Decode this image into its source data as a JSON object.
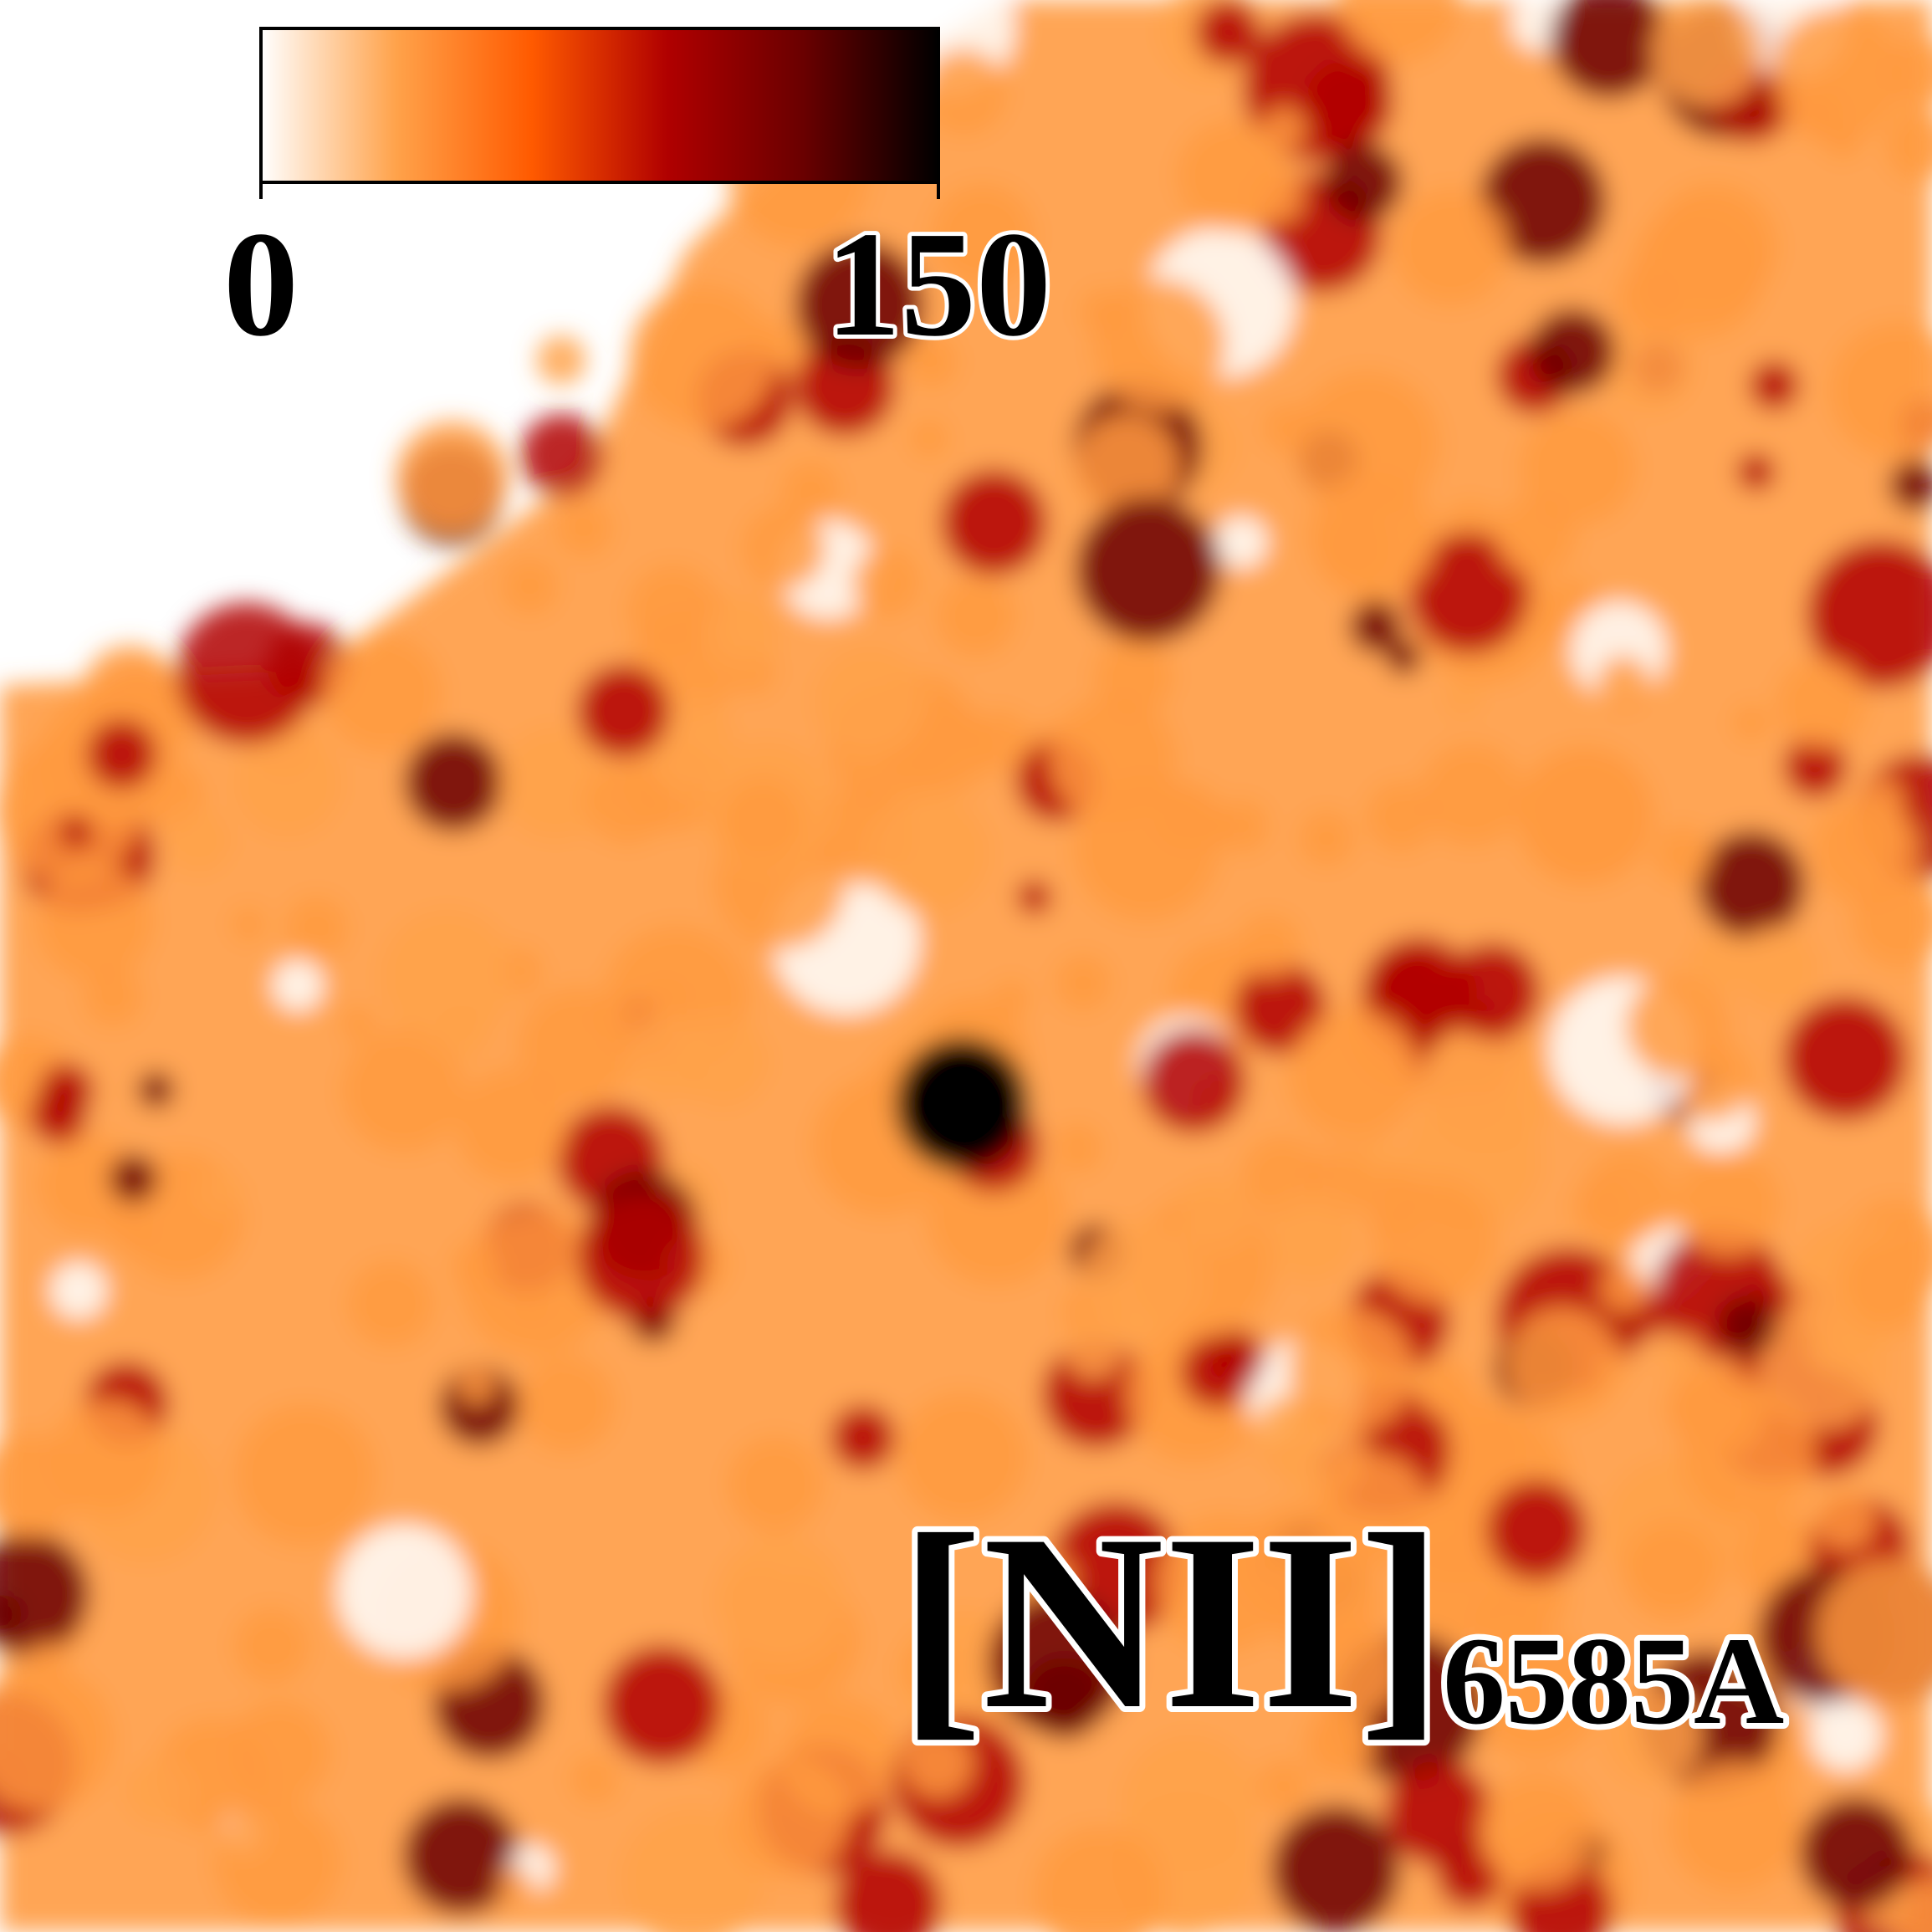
{
  "chart_data": {
    "type": "map",
    "annotation": {
      "main": "[NII]",
      "sub": "6585A"
    },
    "colorbar": {
      "clim": [
        0,
        150
      ],
      "ticks": [
        0,
        150
      ],
      "colors": [
        "#ffffff",
        "#ffa24a",
        "#ff5a00",
        "#b00000",
        "#6a0000",
        "#000000"
      ]
    }
  }
}
